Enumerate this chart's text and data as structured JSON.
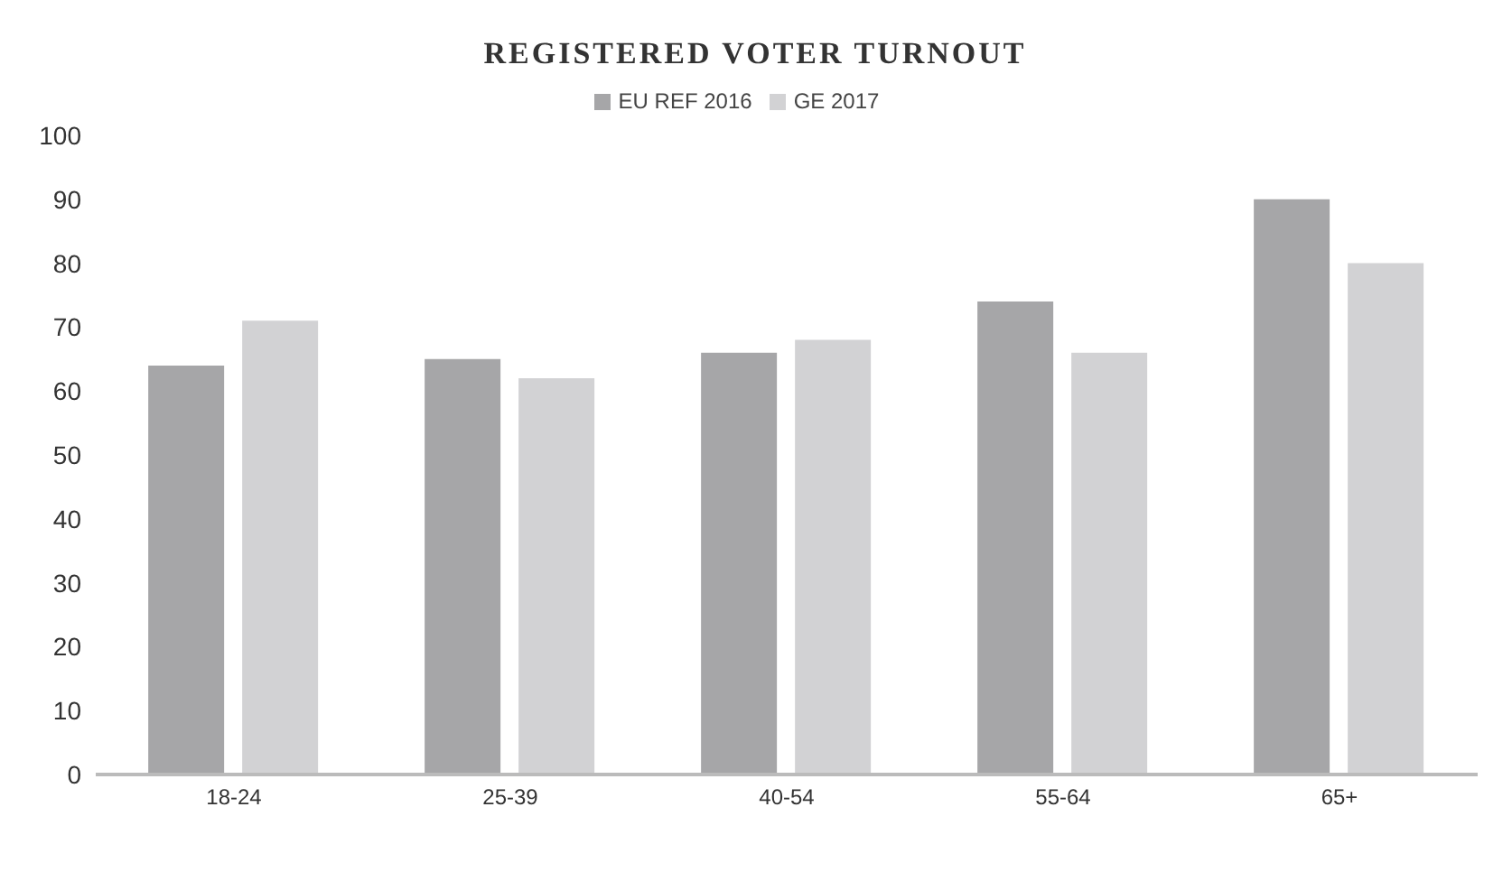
{
  "chart_data": {
    "type": "bar",
    "title": "REGISTERED VOTER TURNOUT",
    "categories": [
      "18-24",
      "25-39",
      "40-54",
      "55-64",
      "65+"
    ],
    "series": [
      {
        "name": "EU REF 2016",
        "color": "#a6a6a8",
        "values": [
          64,
          65,
          66,
          74,
          90
        ]
      },
      {
        "name": "GE 2017",
        "color": "#d2d2d4",
        "values": [
          71,
          62,
          68,
          66,
          80
        ]
      }
    ],
    "ylim": [
      0,
      100
    ],
    "yticks": [
      0,
      10,
      20,
      30,
      40,
      50,
      60,
      70,
      80,
      90,
      100
    ],
    "grid": false,
    "legend": "top"
  }
}
